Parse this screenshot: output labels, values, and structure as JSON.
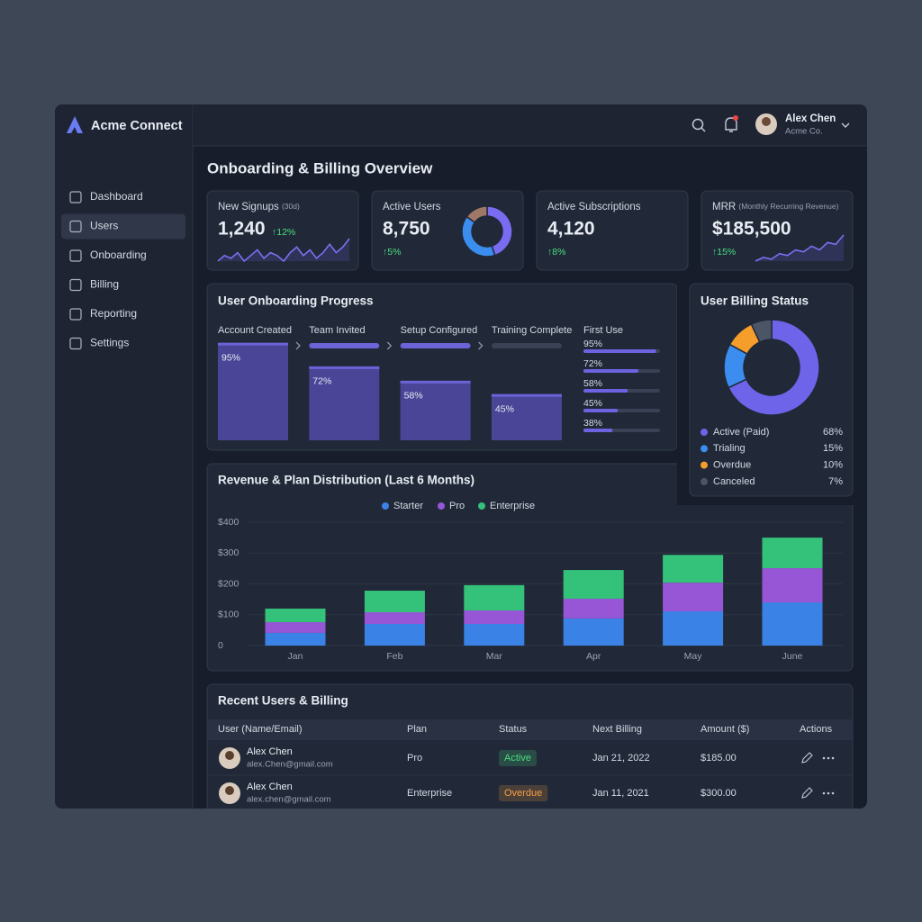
{
  "brand": "Acme Connect",
  "user": {
    "name": "Alex Chen",
    "org": "Acme Co."
  },
  "nav": {
    "items": [
      "Dashboard",
      "Users",
      "Onboarding",
      "Billing",
      "Reporting",
      "Settings"
    ],
    "active": 1
  },
  "title": "Onboarding & Billing Overview",
  "kpis": [
    {
      "label": "New Signups",
      "note": "(30d)",
      "value": "1,240",
      "change": "↑12%",
      "sparkline": [
        3,
        5,
        4,
        6,
        3,
        5,
        7,
        4,
        6,
        5,
        3,
        6,
        8,
        5,
        7,
        4,
        6,
        9,
        6,
        8,
        11
      ]
    },
    {
      "label": "Active Users",
      "value": "8,750",
      "change": "↑5%",
      "donut": {
        "values": [
          45,
          40,
          15
        ],
        "colors": [
          "#7a6cf0",
          "#3b8ef0",
          "#a07866"
        ]
      }
    },
    {
      "label": "Active Subscriptions",
      "value": "4,120",
      "change": "↑8%"
    },
    {
      "label": "MRR",
      "note": "(Monthly Recurring Revenue)",
      "value": "$185,500",
      "change": "↑15%",
      "sparkline": [
        2,
        3,
        2.5,
        4,
        3.5,
        5,
        4.5,
        6,
        5,
        7,
        6.5,
        9
      ]
    }
  ],
  "chart_data": [
    {
      "type": "bar",
      "title": "User Onboarding Progress",
      "categories": [
        "Account Created",
        "Team Invited",
        "Setup Configured",
        "Training Complete"
      ],
      "values": [
        95,
        72,
        58,
        45
      ],
      "value_labels": [
        "95%",
        "72%",
        "58%",
        "45%"
      ],
      "color": "#4a4597",
      "first_use": {
        "label": "First Use",
        "values": [
          95,
          72,
          58,
          45,
          38
        ],
        "value_labels": [
          "95%",
          "72%",
          "58%",
          "45%",
          "38%"
        ]
      }
    },
    {
      "type": "donut",
      "title": "User Billing Status",
      "categories": [
        "Active (Paid)",
        "Trialing",
        "Overdue",
        "Canceled"
      ],
      "values": [
        68,
        15,
        10,
        7
      ],
      "value_labels": [
        "68%",
        "15%",
        "10%",
        "7%"
      ],
      "colors": [
        "#6d64ea",
        "#3b8df0",
        "#f59e2c",
        "#4b5565"
      ]
    },
    {
      "type": "stacked_bar",
      "title": "Revenue & Plan Distribution (Last 6 Months)",
      "categories": [
        "Jan",
        "Feb",
        "Mar",
        "Apr",
        "May",
        "June"
      ],
      "series": [
        {
          "name": "Starter",
          "color": "#3b82e6",
          "values": [
            41,
            70,
            70,
            88,
            111,
            140
          ]
        },
        {
          "name": "Pro",
          "color": "#9656d6",
          "values": [
            35,
            38,
            44,
            64,
            93,
            111
          ]
        },
        {
          "name": "Enterprise",
          "color": "#34c27a",
          "values": [
            44,
            70,
            82,
            93,
            90,
            99
          ]
        }
      ],
      "ylim": [
        0,
        400
      ],
      "yticks": [
        0,
        {
          "value": 100,
          "label": "$100"
        },
        {
          "value": 200,
          "label": "$200"
        },
        {
          "value": 300,
          "label": "$300"
        },
        {
          "value": 400,
          "label": "$400"
        }
      ],
      "grid": true,
      "legend": "top"
    }
  ],
  "table": {
    "title": "Recent Users & Billing",
    "columns": [
      "User (Name/Email)",
      "Plan",
      "Status",
      "Next Billing",
      "Amount ($)",
      "Actions"
    ],
    "rows": [
      {
        "name": "Alex Chen",
        "email": "alex.Chen@gmail.com",
        "plan": "Pro",
        "status": "Active",
        "status_color": "#4ade80",
        "next_billing": "Jan 21, 2022",
        "amount": "$185.00"
      },
      {
        "name": "Alex Chen",
        "email": "alex.chen@gmail.com",
        "plan": "Enterprise",
        "status": "Overdue",
        "status_color": "#f59e42",
        "next_billing": "Jan 11, 2021",
        "amount": "$300.00"
      }
    ]
  }
}
